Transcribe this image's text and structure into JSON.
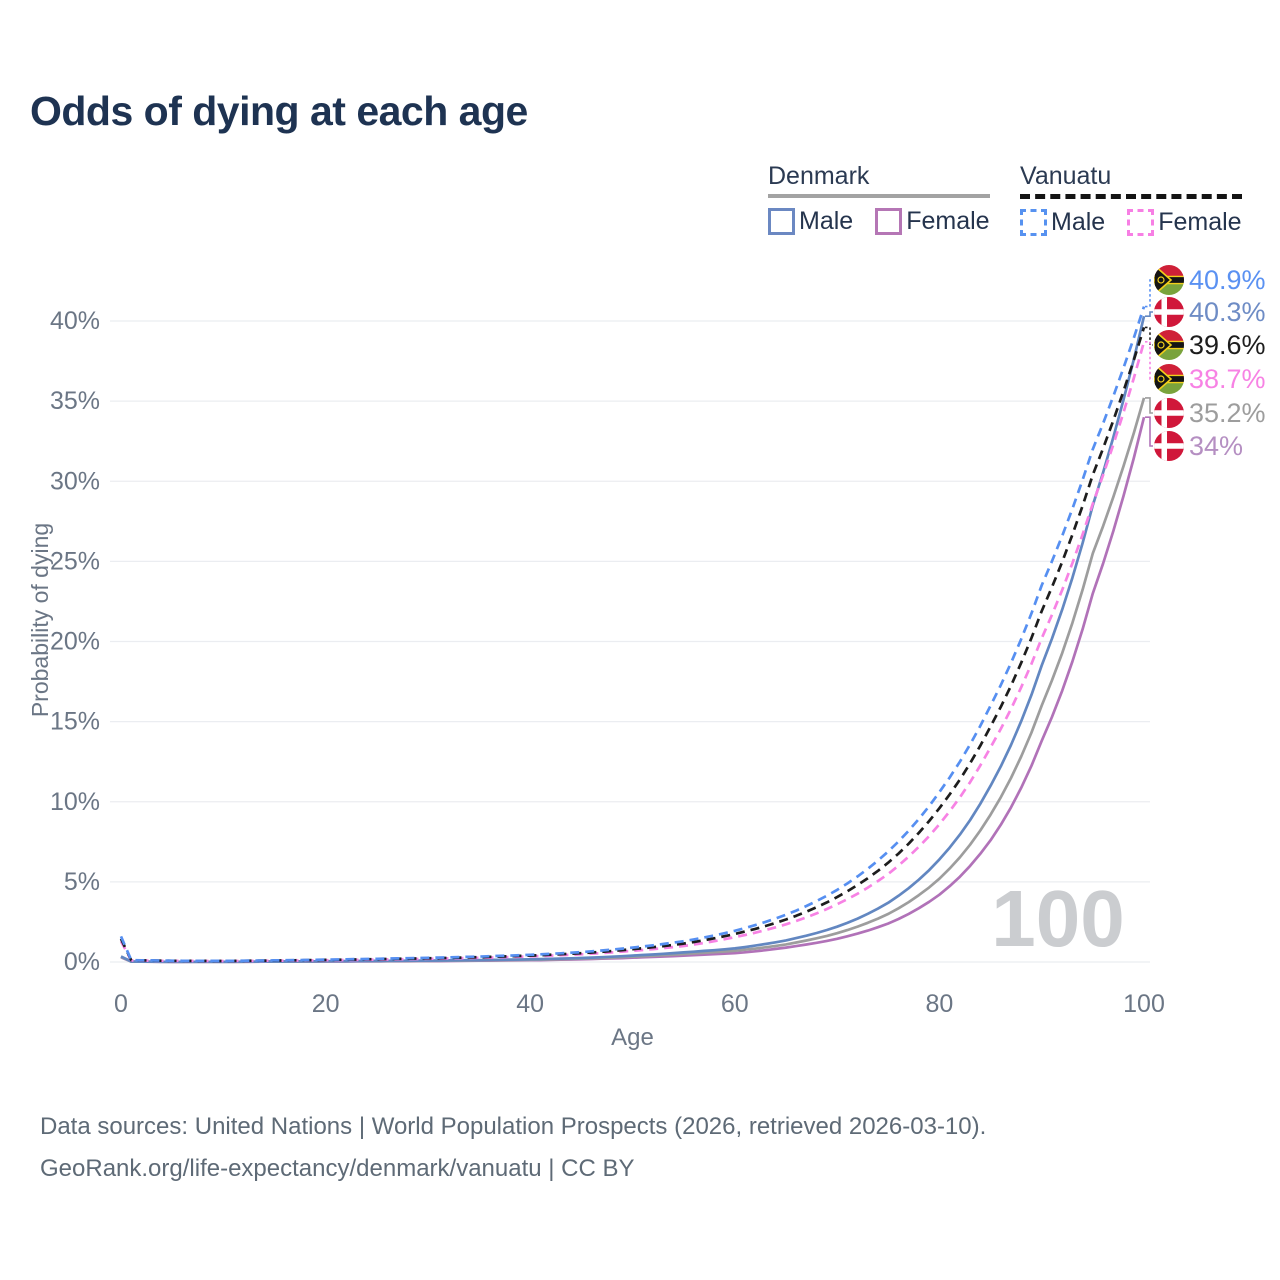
{
  "title": "Odds of dying at each age",
  "legend": {
    "groups": [
      {
        "id": "denmark",
        "label": "Denmark",
        "line_style": "solid",
        "line_color": "#a3a3a3",
        "items": [
          {
            "id": "denmark_male",
            "label": "Male",
            "color": "#6b88c2",
            "dashed": false
          },
          {
            "id": "denmark_female",
            "label": "Female",
            "color": "#b576b5",
            "dashed": false
          }
        ]
      },
      {
        "id": "vanuatu",
        "label": "Vanuatu",
        "line_style": "dashed",
        "line_color": "#141414",
        "items": [
          {
            "id": "vanuatu_male",
            "label": "Male",
            "color": "#5792f0",
            "dashed": true
          },
          {
            "id": "vanuatu_female",
            "label": "Female",
            "color": "#f77fe4",
            "dashed": true
          }
        ]
      }
    ]
  },
  "chart_data": {
    "type": "line",
    "title": "Odds of dying at each age",
    "xlabel": "Age",
    "ylabel": "Probability of dying",
    "xlim": [
      0,
      100
    ],
    "ylim_percent": [
      0,
      43
    ],
    "x_ticks": [
      0,
      20,
      40,
      60,
      80,
      100
    ],
    "x_tick_labels": [
      "0",
      "20",
      "40",
      "60",
      "80",
      "100"
    ],
    "y_ticks_percent": [
      0,
      5,
      10,
      15,
      20,
      25,
      30,
      35,
      40
    ],
    "y_tick_labels": [
      "0%",
      "5%",
      "10%",
      "15%",
      "20%",
      "25%",
      "30%",
      "35%",
      "40%"
    ],
    "grid": true,
    "watermark": "100",
    "x": [
      0,
      1,
      5,
      10,
      15,
      20,
      25,
      30,
      35,
      40,
      45,
      50,
      55,
      60,
      65,
      70,
      75,
      80,
      85,
      90,
      95,
      100
    ],
    "series": [
      {
        "name": "Denmark Female",
        "country": "denmark",
        "sex": "female",
        "color": "#b172b8",
        "label_color": "#b58fc2",
        "dashed": false,
        "end_label": "34%",
        "end_value": 34,
        "values": [
          0.3,
          0.025,
          0.009,
          0.01,
          0.02,
          0.03,
          0.04,
          0.05,
          0.08,
          0.11,
          0.17,
          0.27,
          0.4,
          0.55,
          0.9,
          1.45,
          2.4,
          4.2,
          7.6,
          13.8,
          23,
          34
        ]
      },
      {
        "name": "Denmark Both",
        "country": "denmark",
        "sex": "both",
        "color": "#9d9d9d",
        "label_color": "#9d9d9d",
        "dashed": false,
        "end_label": "35.2%",
        "end_value": 35.2,
        "values": [
          0.32,
          0.028,
          0.01,
          0.011,
          0.025,
          0.04,
          0.055,
          0.07,
          0.1,
          0.14,
          0.21,
          0.33,
          0.5,
          0.7,
          1.1,
          1.8,
          3.0,
          5.2,
          9.2,
          16,
          25.5,
          35.2
        ]
      },
      {
        "name": "Denmark Male",
        "country": "denmark",
        "sex": "male",
        "color": "#6287c1",
        "label_color": "#6e8cc5",
        "dashed": false,
        "end_label": "40.3%",
        "end_value": 40.3,
        "values": [
          0.35,
          0.03,
          0.01,
          0.012,
          0.03,
          0.05,
          0.07,
          0.09,
          0.12,
          0.17,
          0.25,
          0.4,
          0.6,
          0.85,
          1.35,
          2.2,
          3.7,
          6.4,
          11,
          18.5,
          28.5,
          40.3
        ]
      },
      {
        "name": "Vanuatu Female",
        "country": "vanuatu",
        "sex": "female",
        "color": "#f782e4",
        "label_color": "#f782e4",
        "dashed": true,
        "end_label": "38.7%",
        "end_value": 38.7,
        "values": [
          1.3,
          0.1,
          0.07,
          0.06,
          0.08,
          0.11,
          0.15,
          0.2,
          0.26,
          0.35,
          0.48,
          0.7,
          1.0,
          1.55,
          2.35,
          3.6,
          5.5,
          8.6,
          13.4,
          20.2,
          28.6,
          38.7
        ]
      },
      {
        "name": "Vanuatu Both",
        "country": "vanuatu",
        "sex": "both",
        "color": "#1d1d1d",
        "label_color": "#1d1d1d",
        "dashed": true,
        "end_label": "39.6%",
        "end_value": 39.6,
        "values": [
          1.45,
          0.11,
          0.075,
          0.065,
          0.09,
          0.13,
          0.18,
          0.23,
          0.3,
          0.4,
          0.55,
          0.8,
          1.15,
          1.75,
          2.65,
          4.05,
          6.2,
          9.6,
          14.7,
          21.9,
          30.4,
          39.6
        ]
      },
      {
        "name": "Vanuatu Male",
        "country": "vanuatu",
        "sex": "male",
        "color": "#568ff1",
        "label_color": "#5a91f2",
        "dashed": true,
        "end_label": "40.9%",
        "end_value": 40.9,
        "values": [
          1.6,
          0.12,
          0.08,
          0.07,
          0.1,
          0.15,
          0.2,
          0.26,
          0.34,
          0.45,
          0.62,
          0.9,
          1.3,
          1.95,
          2.95,
          4.5,
          6.9,
          10.6,
          16,
          23.5,
          32,
          40.9
        ]
      }
    ],
    "flag_colors": {
      "denmark_red": "#d0173a",
      "denmark_cross": "#ffffff",
      "vanuatu_red": "#cf2038",
      "vanuatu_green": "#7aa33c",
      "vanuatu_black": "#141414",
      "vanuatu_yellow": "#f2cf1b"
    },
    "text_colors": {
      "axis": "#6b7685",
      "watermark": "#cbcdd0",
      "grid": "#ebedf1"
    }
  },
  "footer": {
    "line1": "Data sources: United Nations | World Population Prospects (2026, retrieved 2026-03-10).",
    "line2": "GeoRank.org/life-expectancy/denmark/vanuatu | CC BY"
  }
}
